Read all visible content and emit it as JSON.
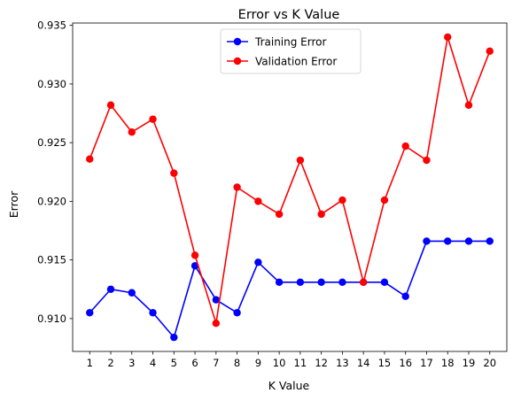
{
  "chart_data": {
    "type": "line",
    "title": "Error vs K Value",
    "xlabel": "K Value",
    "ylabel": "Error",
    "x": [
      1,
      2,
      3,
      4,
      5,
      6,
      7,
      8,
      9,
      10,
      11,
      12,
      13,
      14,
      15,
      16,
      17,
      18,
      19,
      20
    ],
    "xlim": [
      0.19,
      20.81
    ],
    "ylim": [
      0.9072,
      0.9352
    ],
    "x_ticks": [
      "1",
      "2",
      "3",
      "4",
      "5",
      "6",
      "7",
      "8",
      "9",
      "10",
      "11",
      "12",
      "13",
      "14",
      "15",
      "16",
      "17",
      "18",
      "19",
      "20"
    ],
    "y_ticks": [
      0.91,
      0.915,
      0.92,
      0.925,
      0.93,
      0.935
    ],
    "y_tick_labels": [
      "0.910",
      "0.915",
      "0.920",
      "0.925",
      "0.930",
      "0.935"
    ],
    "grid": false,
    "legend_position": "upper center",
    "series": [
      {
        "name": "Training Error",
        "color": "#0000ff",
        "marker": "circle",
        "values": [
          0.9105,
          0.9125,
          0.9122,
          0.9105,
          0.9084,
          0.9145,
          0.9116,
          0.9105,
          0.9148,
          0.9131,
          0.9131,
          0.9131,
          0.9131,
          0.9131,
          0.9131,
          0.9119,
          0.9166,
          0.9166,
          0.9166,
          0.9166
        ]
      },
      {
        "name": "Validation Error",
        "color": "#ff0000",
        "marker": "circle",
        "values": [
          0.9236,
          0.9282,
          0.9259,
          0.927,
          0.9224,
          0.9154,
          0.9096,
          0.9212,
          0.92,
          0.9189,
          0.9235,
          0.9189,
          0.9201,
          0.9131,
          0.9201,
          0.9247,
          0.9235,
          0.934,
          0.9282,
          0.9328
        ]
      }
    ]
  }
}
